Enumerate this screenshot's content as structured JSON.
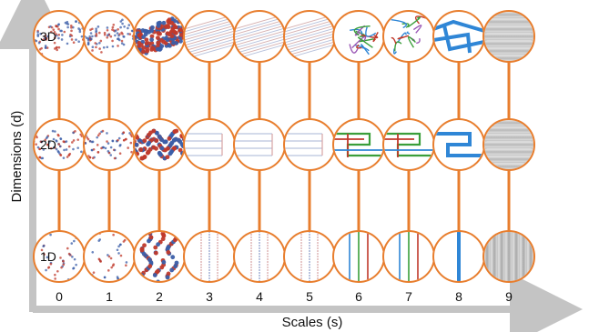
{
  "axes": {
    "x_label": "Scales (s)",
    "y_label": "Dimensions (d)",
    "x_ticks": [
      "0",
      "1",
      "2",
      "3",
      "4",
      "5",
      "6",
      "7",
      "8",
      "9"
    ],
    "y_ticks": [
      "3D",
      "2D",
      "1D"
    ]
  },
  "colors": {
    "axis": "#c4c4c4",
    "ring": "#e87e2e",
    "connector": "#e87e2e",
    "dna_red": "#c0392b",
    "dna_blue": "#3b5ea8",
    "tube_blue": "#2f86d6",
    "green": "#3a9e3a",
    "gray": "#9a9a9a"
  },
  "grid": {
    "columns": 10,
    "rows": 3,
    "row_dimensions": [
      "3D",
      "2D",
      "1D"
    ],
    "cell_styles": [
      "atomic-dna",
      "atomic-dna",
      "dense-atomic",
      "strand-lines",
      "strand-lines",
      "strand-lines",
      "color-helix",
      "color-helix",
      "blue-tube",
      "gray-cylinder"
    ]
  }
}
